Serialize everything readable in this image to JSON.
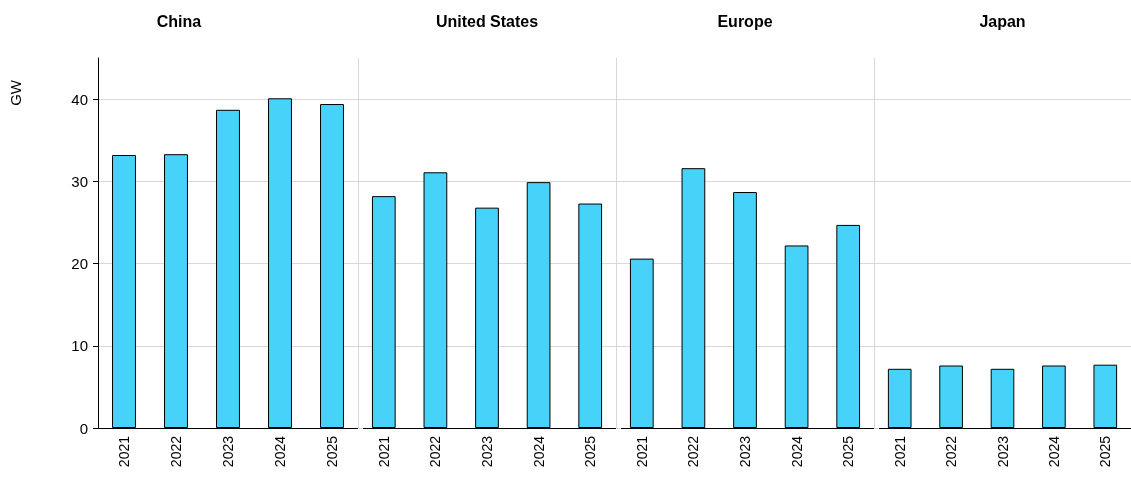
{
  "chart_data": [
    {
      "type": "bar",
      "title": "China",
      "ylabel": "GW",
      "categories": [
        "2021",
        "2022",
        "2023",
        "2024",
        "2025"
      ],
      "values": [
        33.2,
        33.3,
        38.7,
        40.1,
        39.4
      ],
      "color": "#47d3f9",
      "ylim": [
        0,
        45
      ],
      "yticks": [
        0,
        10,
        20,
        30,
        40
      ],
      "grid": "y"
    },
    {
      "type": "bar",
      "title": "United States",
      "categories": [
        "2021",
        "2022",
        "2023",
        "2024",
        "2025"
      ],
      "values": [
        28.2,
        31.1,
        26.8,
        29.9,
        27.3
      ],
      "color": "#47d3f9",
      "ylim": [
        0,
        45
      ],
      "yticks": [
        0,
        10,
        20,
        30,
        40
      ],
      "grid": "y",
      "tick_labels": "x"
    },
    {
      "type": "bar",
      "title": "Europe",
      "categories": [
        "2021",
        "2022",
        "2023",
        "2024",
        "2025"
      ],
      "values": [
        20.6,
        31.6,
        28.7,
        22.2,
        24.7
      ],
      "color": "#47d3f9",
      "ylim": [
        0,
        45
      ],
      "yticks": [
        0,
        10,
        20,
        30,
        40
      ],
      "grid": "y",
      "tick_labels": "x"
    },
    {
      "type": "bar",
      "title": "Japan",
      "categories": [
        "2021",
        "2022",
        "2023",
        "2024",
        "2025"
      ],
      "values": [
        7.2,
        7.6,
        7.2,
        7.6,
        7.7
      ],
      "color": "#47d3f9",
      "ylim": [
        0,
        45
      ],
      "yticks": [
        0,
        10,
        20,
        30,
        40
      ],
      "grid": "y",
      "tick_labels": "x"
    }
  ]
}
